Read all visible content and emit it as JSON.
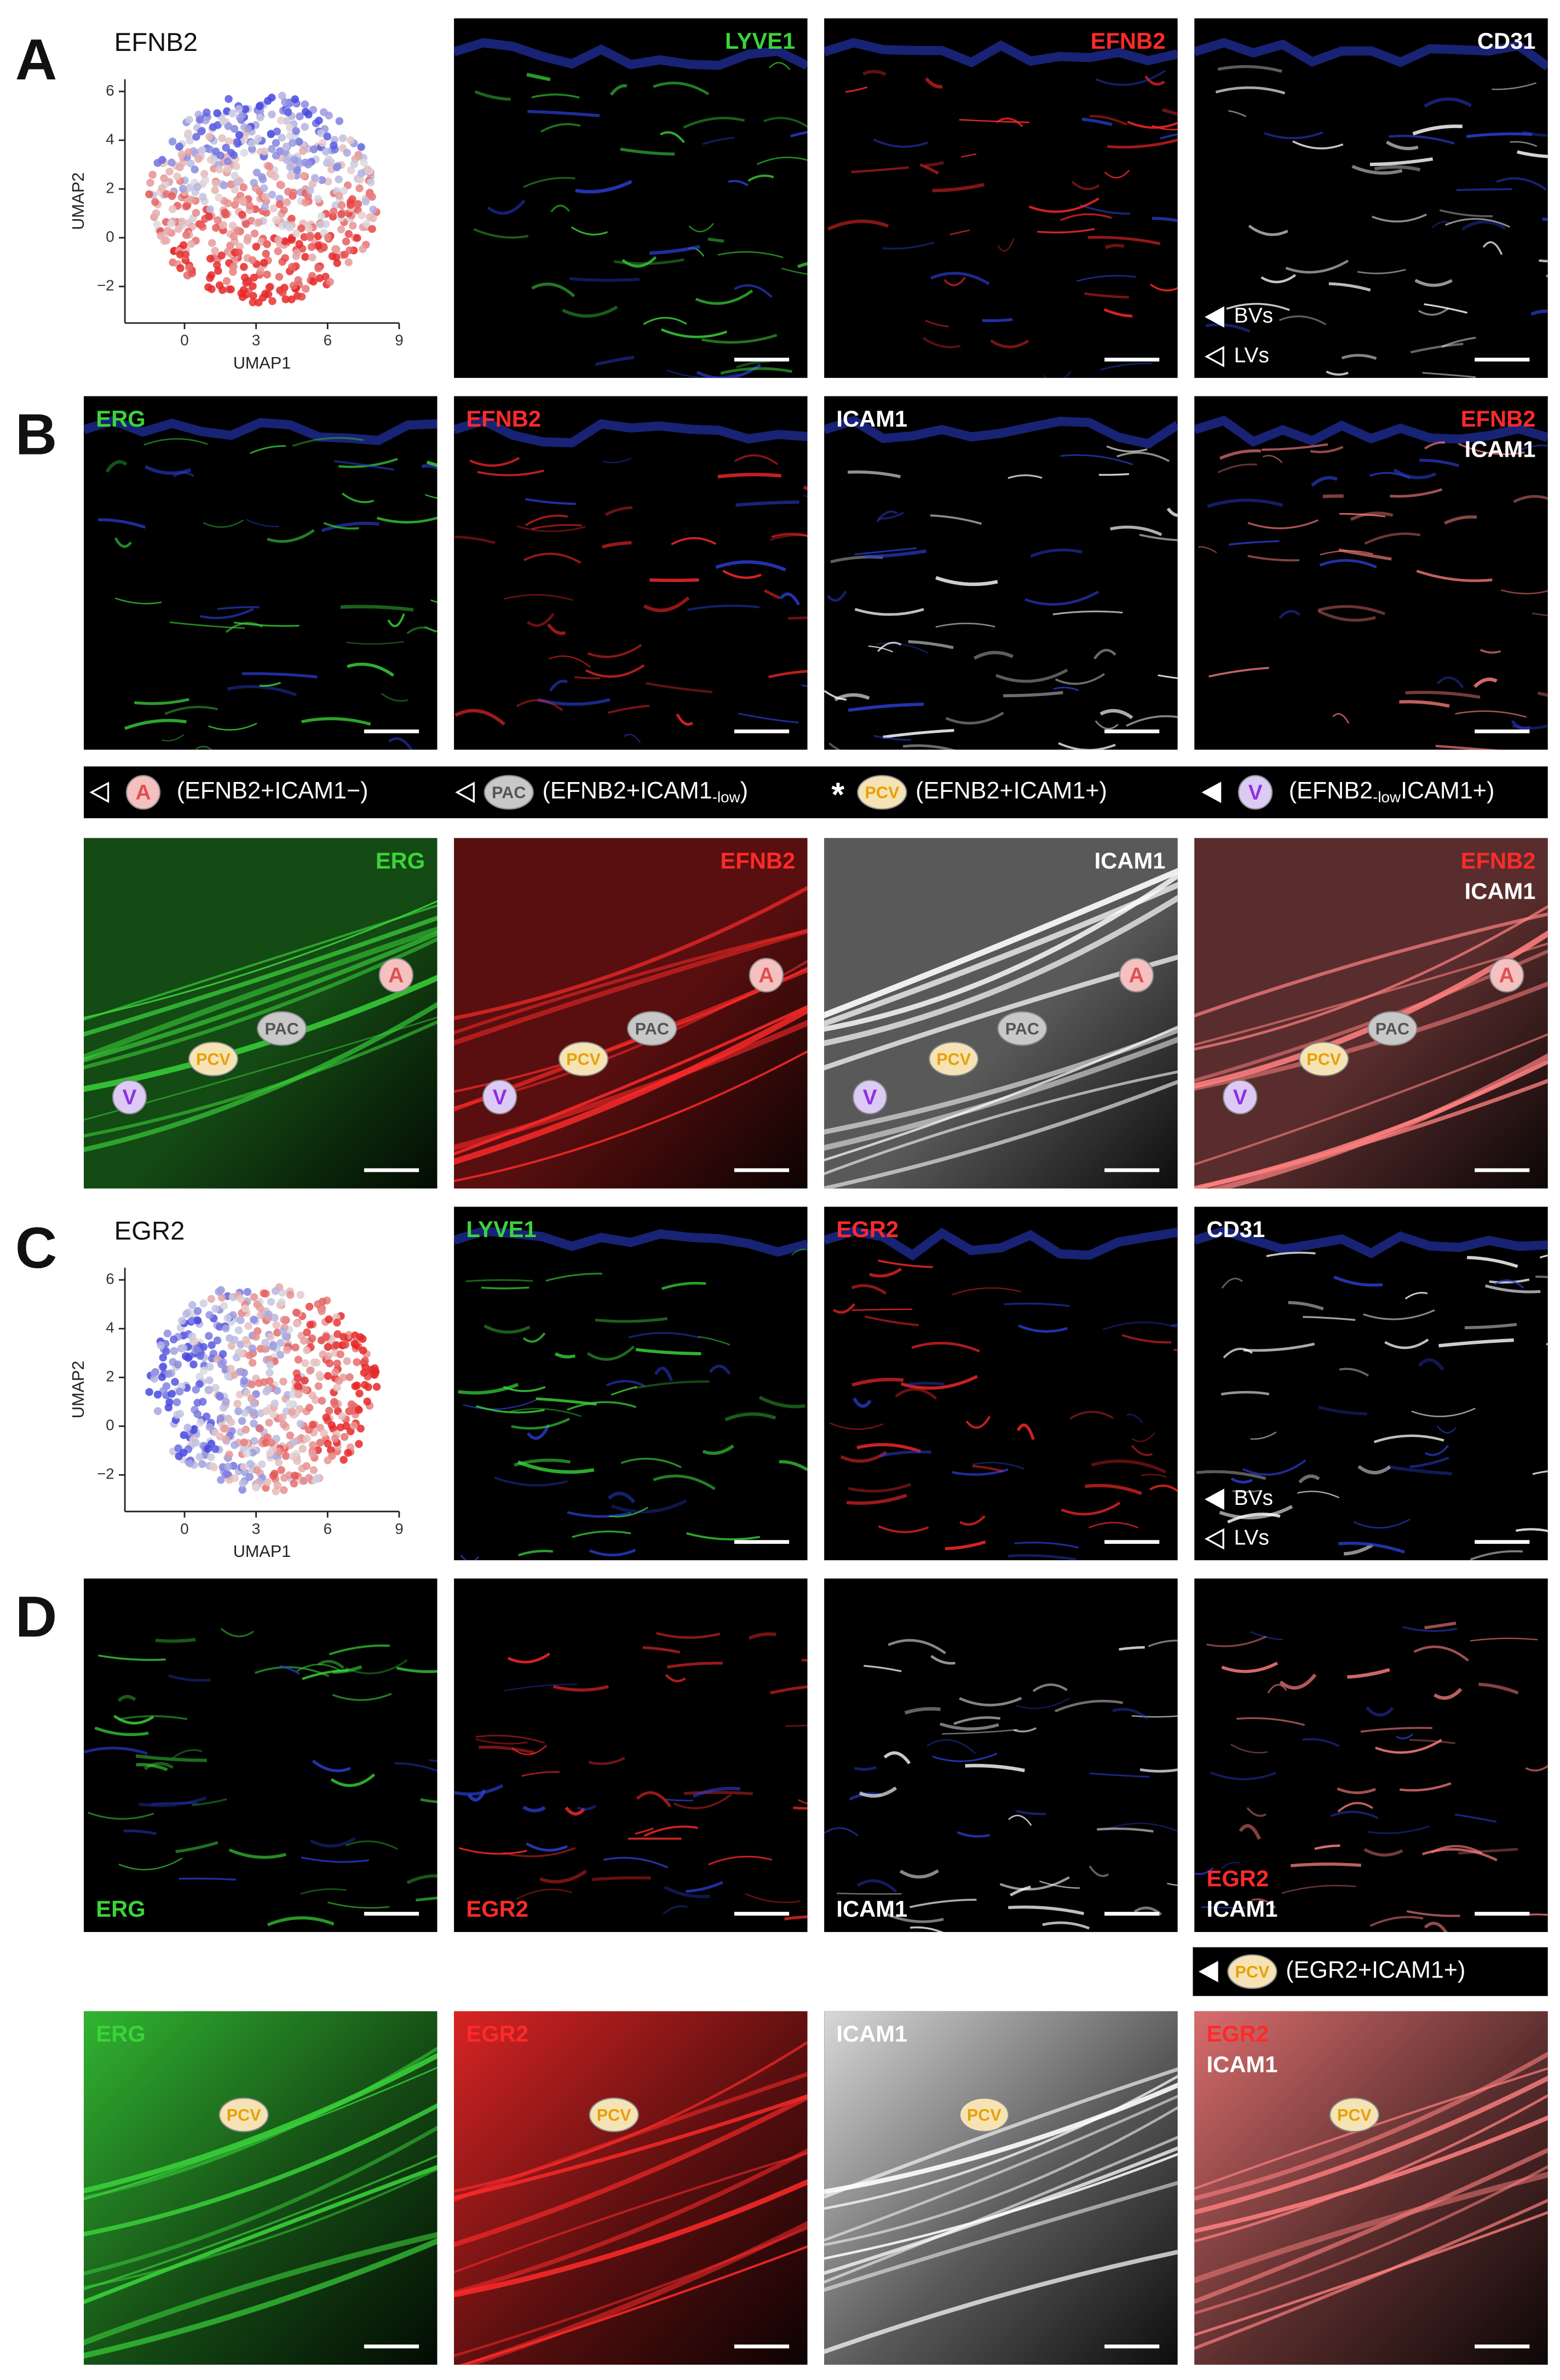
{
  "rows": [
    {
      "letter": "A",
      "umap": {
        "title": "EFNB2",
        "x_label": "UMAP1",
        "y_label": "UMAP2",
        "xlim": [
          -2.5,
          9
        ],
        "ylim": [
          -3.5,
          6.5
        ],
        "xticks": [
          0,
          3,
          6,
          9
        ],
        "yticks": [
          {
            "value": -2,
            "label": "−2"
          },
          0,
          2,
          4,
          6
        ]
      },
      "images": [
        {
          "corner": "top-right",
          "labels": [
            {
              "text": "LYVE1",
              "color": "#3ad43a"
            }
          ]
        },
        {
          "corner": "top-right",
          "labels": [
            {
              "text": "EFNB2",
              "color": "#ff2a2a"
            }
          ]
        },
        {
          "corner": "top-right",
          "labels": [
            {
              "text": "CD31",
              "color": "#ffffff"
            }
          ],
          "key": [
            "BVs",
            "LVs"
          ]
        }
      ]
    },
    {
      "letter": "B",
      "images": [
        {
          "corner": "top-left",
          "labels": [
            {
              "text": "ERG",
              "color": "#3ad43a"
            }
          ]
        },
        {
          "corner": "top-left",
          "labels": [
            {
              "text": "EFNB2",
              "color": "#ff2a2a"
            }
          ]
        },
        {
          "corner": "top-left",
          "labels": [
            {
              "text": "ICAM1",
              "color": "#ffffff"
            }
          ]
        },
        {
          "corner": "top-right",
          "labels": [
            {
              "text": "EFNB2",
              "color": "#ff2a2a"
            },
            {
              "text": "ICAM1",
              "color": "#ffffff"
            }
          ]
        }
      ]
    },
    {
      "images": [
        {
          "corner": "top-right",
          "labels": [
            {
              "text": "ERG",
              "color": "#3ad43a"
            }
          ],
          "badges": [
            {
              "text": "A",
              "color": "#e05050",
              "fill": "#f4c0c0"
            },
            {
              "text": "PAC",
              "color": "#555555",
              "fill": "#c8c8c8"
            },
            {
              "text": "PCV",
              "color": "#e8a000",
              "fill": "#f5e3b5"
            },
            {
              "text": "V",
              "color": "#9030e0",
              "fill": "#dccaf5"
            }
          ]
        },
        {
          "corner": "top-right",
          "labels": [
            {
              "text": "EFNB2",
              "color": "#ff2a2a"
            }
          ],
          "badges": [
            {
              "text": "A",
              "color": "#e05050",
              "fill": "#f4c0c0"
            },
            {
              "text": "PAC",
              "color": "#555555",
              "fill": "#c8c8c8"
            },
            {
              "text": "PCV",
              "color": "#e8a000",
              "fill": "#f5e3b5"
            },
            {
              "text": "V",
              "color": "#9030e0",
              "fill": "#dccaf5"
            }
          ]
        },
        {
          "corner": "top-right",
          "labels": [
            {
              "text": "ICAM1",
              "color": "#ffffff"
            }
          ],
          "badges": [
            {
              "text": "A",
              "color": "#e05050",
              "fill": "#f4c0c0"
            },
            {
              "text": "PAC",
              "color": "#555555",
              "fill": "#c8c8c8"
            },
            {
              "text": "PCV",
              "color": "#e8a000",
              "fill": "#f5e3b5"
            },
            {
              "text": "V",
              "color": "#9030e0",
              "fill": "#dccaf5"
            }
          ]
        },
        {
          "corner": "top-right",
          "labels": [
            {
              "text": "EFNB2",
              "color": "#ff2a2a"
            },
            {
              "text": "ICAM1",
              "color": "#ffffff"
            }
          ],
          "badges": [
            {
              "text": "A",
              "color": "#e05050",
              "fill": "#f4c0c0"
            },
            {
              "text": "PAC",
              "color": "#555555",
              "fill": "#c8c8c8"
            },
            {
              "text": "PCV",
              "color": "#e8a000",
              "fill": "#f5e3b5"
            },
            {
              "text": "V",
              "color": "#9030e0",
              "fill": "#dccaf5"
            }
          ]
        }
      ]
    },
    {
      "letter": "C",
      "umap": {
        "title": "EGR2",
        "x_label": "UMAP1",
        "y_label": "UMAP2",
        "xlim": [
          -2.5,
          9
        ],
        "ylim": [
          -3.5,
          6.5
        ],
        "xticks": [
          0,
          3,
          6,
          9
        ],
        "yticks": [
          {
            "value": -2,
            "label": "−2"
          },
          0,
          2,
          4,
          6
        ]
      },
      "images": [
        {
          "corner": "top-left",
          "labels": [
            {
              "text": "LYVE1",
              "color": "#3ad43a"
            }
          ]
        },
        {
          "corner": "top-left",
          "labels": [
            {
              "text": "EGR2",
              "color": "#ff2a2a"
            }
          ]
        },
        {
          "corner": "top-left",
          "labels": [
            {
              "text": "CD31",
              "color": "#ffffff"
            }
          ],
          "key": [
            "BVs",
            "LVs"
          ]
        }
      ]
    },
    {
      "letter": "D",
      "images": [
        {
          "corner": "bottom-left",
          "labels": [
            {
              "text": "ERG",
              "color": "#3ad43a"
            }
          ]
        },
        {
          "corner": "bottom-left",
          "labels": [
            {
              "text": "EGR2",
              "color": "#ff2a2a"
            }
          ]
        },
        {
          "corner": "bottom-left",
          "labels": [
            {
              "text": "ICAM1",
              "color": "#ffffff"
            }
          ]
        },
        {
          "corner": "bottom-left",
          "labels": [
            {
              "text": "EGR2",
              "color": "#ff2a2a"
            },
            {
              "text": "ICAM1",
              "color": "#ffffff"
            }
          ]
        }
      ]
    },
    {
      "images": [
        {
          "corner": "top-left",
          "labels": [
            {
              "text": "ERG",
              "color": "#3ad43a"
            }
          ],
          "badges": [
            {
              "text": "PCV",
              "color": "#e8a000",
              "fill": "#f5e3b5"
            }
          ]
        },
        {
          "corner": "top-left",
          "labels": [
            {
              "text": "EGR2",
              "color": "#ff2a2a"
            }
          ],
          "badges": [
            {
              "text": "PCV",
              "color": "#e8a000",
              "fill": "#f5e3b5"
            }
          ]
        },
        {
          "corner": "top-left",
          "labels": [
            {
              "text": "ICAM1",
              "color": "#ffffff"
            }
          ],
          "badges": [
            {
              "text": "PCV",
              "color": "#e8a000",
              "fill": "#f5e3b5"
            }
          ]
        },
        {
          "corner": "top-left",
          "labels": [
            {
              "text": "EGR2",
              "color": "#ff2a2a"
            },
            {
              "text": "ICAM1",
              "color": "#ffffff"
            }
          ],
          "badges": [
            {
              "text": "PCV",
              "color": "#e8a000",
              "fill": "#f5e3b5"
            }
          ]
        }
      ]
    }
  ],
  "legend_bar": [
    {
      "marker": "open",
      "badge": {
        "text": "A",
        "color": "#e05050",
        "fill": "#f4c0c0"
      },
      "parts": [
        {
          "text": "(EFNB2+ICAM1−)"
        }
      ]
    },
    {
      "marker": "open",
      "badge": {
        "text": "PAC",
        "color": "#555555",
        "fill": "#c8c8c8"
      },
      "parts": [
        {
          "text": "(EFNB2+ICAM1"
        },
        {
          "text": "-low",
          "sub": true
        },
        {
          "text": ")"
        }
      ]
    },
    {
      "marker": "star",
      "badge": {
        "text": "PCV",
        "color": "#e8a000",
        "fill": "#f5e3b5"
      },
      "parts": [
        {
          "text": "(EFNB2+ICAM1+)"
        }
      ]
    },
    {
      "marker": "filled",
      "badge": {
        "text": "V",
        "color": "#9030e0",
        "fill": "#dccaf5"
      },
      "parts": [
        {
          "text": "(EFNB2"
        },
        {
          "text": "-low",
          "sub": true
        },
        {
          "text": "ICAM1+)"
        }
      ]
    }
  ],
  "pcv_bar": {
    "marker": "filled",
    "badge": {
      "text": "PCV",
      "color": "#e8a000",
      "fill": "#f5e3b5"
    },
    "parts": [
      {
        "text": "(EGR2+ICAM1+)"
      }
    ]
  }
}
